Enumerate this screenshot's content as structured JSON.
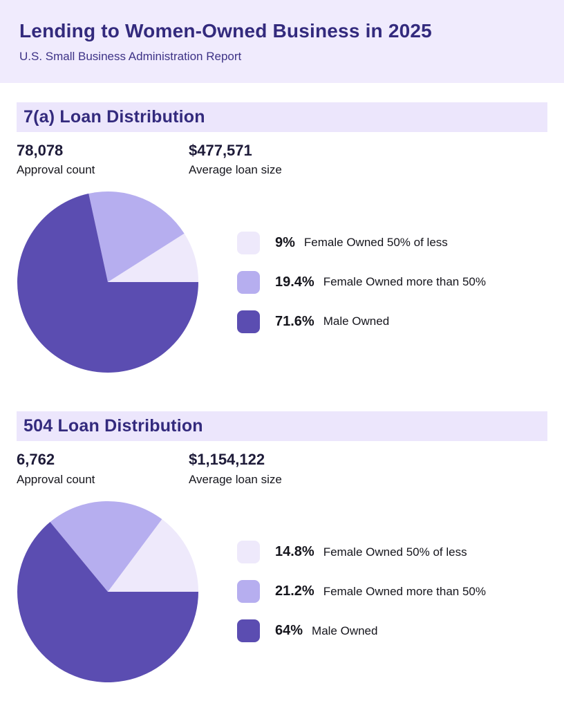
{
  "header": {
    "title": "Lending to Women-Owned Business in 2025",
    "subtitle": "U.S. Small Business Administration Report"
  },
  "colors": {
    "header_bg": "#f0ebfd",
    "band_bg": "#ece6fc",
    "indigo": "#332a7d",
    "indigo_soft": "#3d3286",
    "stat_number": "#1e1b39",
    "text": "#15151c",
    "pie_light": "#eee9fb",
    "pie_medium": "#b6aeef",
    "pie_dark": "#5b4db1"
  },
  "sections": [
    {
      "title": "7(a) Loan Distribution",
      "stats": [
        {
          "value": "78,078",
          "label": "Approval count"
        },
        {
          "value": "$477,571",
          "label": "Average loan size"
        }
      ]
    },
    {
      "title": "504 Loan Distribution",
      "stats": [
        {
          "value": "6,762",
          "label": "Approval count"
        },
        {
          "value": "$1,154,122",
          "label": "Average loan size"
        }
      ]
    }
  ],
  "chart_data": [
    {
      "type": "pie",
      "title": "7(a) Loan Distribution",
      "labels": [
        "Female Owned 50% of less",
        "Female Owned more than 50%",
        "Male Owned"
      ],
      "values": [
        9,
        19.4,
        71.6
      ],
      "value_labels": [
        "9%",
        "19.4%",
        "71.6%"
      ],
      "colors": [
        "#eee9fb",
        "#b6aeef",
        "#5b4db1"
      ],
      "start_angle_deg": 0,
      "direction": "counterclockwise",
      "legend_position": "right"
    },
    {
      "type": "pie",
      "title": "504 Loan Distribution",
      "labels": [
        "Female Owned 50% of less",
        "Female Owned more than 50%",
        "Male Owned"
      ],
      "values": [
        14.8,
        21.2,
        64
      ],
      "value_labels": [
        "14.8%",
        "21.2%",
        "64%"
      ],
      "colors": [
        "#eee9fb",
        "#b6aeef",
        "#5b4db1"
      ],
      "start_angle_deg": 0,
      "direction": "counterclockwise",
      "legend_position": "right"
    }
  ]
}
